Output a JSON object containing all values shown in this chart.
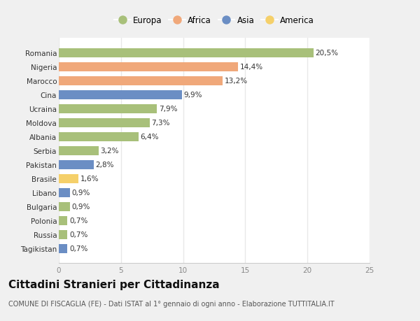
{
  "countries": [
    "Romania",
    "Nigeria",
    "Marocco",
    "Cina",
    "Ucraina",
    "Moldova",
    "Albania",
    "Serbia",
    "Pakistan",
    "Brasile",
    "Libano",
    "Bulgaria",
    "Polonia",
    "Russia",
    "Tagikistan"
  ],
  "values": [
    20.5,
    14.4,
    13.2,
    9.9,
    7.9,
    7.3,
    6.4,
    3.2,
    2.8,
    1.6,
    0.9,
    0.9,
    0.7,
    0.7,
    0.7
  ],
  "labels": [
    "20,5%",
    "14,4%",
    "13,2%",
    "9,9%",
    "7,9%",
    "7,3%",
    "6,4%",
    "3,2%",
    "2,8%",
    "1,6%",
    "0,9%",
    "0,9%",
    "0,7%",
    "0,7%",
    "0,7%"
  ],
  "continents": [
    "Europa",
    "Africa",
    "Africa",
    "Asia",
    "Europa",
    "Europa",
    "Europa",
    "Europa",
    "Asia",
    "America",
    "Asia",
    "Europa",
    "Europa",
    "Europa",
    "Asia"
  ],
  "continent_colors": {
    "Europa": "#a8c07a",
    "Africa": "#f0a87a",
    "Asia": "#6b8ec4",
    "America": "#f5d06a"
  },
  "legend_order": [
    "Europa",
    "Africa",
    "Asia",
    "America"
  ],
  "title": "Cittadini Stranieri per Cittadinanza",
  "subtitle": "COMUNE DI FISCAGLIA (FE) - Dati ISTAT al 1° gennaio di ogni anno - Elaborazione TUTTITALIA.IT",
  "xlim": [
    0,
    25
  ],
  "xticks": [
    0,
    5,
    10,
    15,
    20,
    25
  ],
  "fig_background": "#f0f0f0",
  "plot_background": "#ffffff",
  "grid_color": "#e8e8e8",
  "label_fontsize": 7.5,
  "tick_fontsize": 7.5,
  "title_fontsize": 11,
  "subtitle_fontsize": 7.0,
  "bar_height": 0.65
}
